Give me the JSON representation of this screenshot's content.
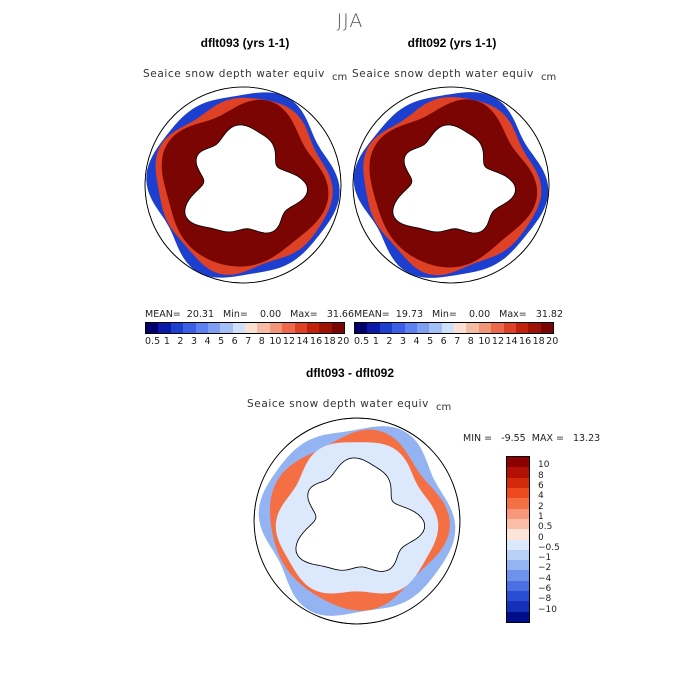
{
  "season": "JJA",
  "panels": [
    {
      "title": "dflt093 (yrs 1-1)",
      "variable": "Seaice snow depth water equiv",
      "unit": "cm",
      "stats": "MEAN=  20.31   Min=    0.00   Max=   31.66"
    },
    {
      "title": "dflt092 (yrs 1-1)",
      "variable": "Seaice snow depth water equiv",
      "unit": "cm",
      "stats": "MEAN=  19.73   Min=    0.00   Max=   31.82"
    }
  ],
  "diff_panel": {
    "title": "dflt093 - dflt092",
    "variable": "Seaice snow depth water equiv",
    "unit": "cm",
    "minmax": "MIN =   -9.55  MAX =   13.23"
  },
  "colorbar_abs": {
    "ticks": [
      "0.5",
      "1",
      "2",
      "3",
      "4",
      "5",
      "6",
      "7",
      "8",
      "10",
      "12",
      "14",
      "16",
      "18",
      "20"
    ],
    "colors": [
      "#00006e",
      "#0a1aa8",
      "#1d3fd0",
      "#3a5fe6",
      "#5b80ef",
      "#7d9ef3",
      "#a4bff6",
      "#cfe0fa",
      "#fbe0d4",
      "#f6bba3",
      "#f29477",
      "#ea6a4b",
      "#de4125",
      "#c0220e",
      "#9c1204",
      "#7a0502"
    ]
  },
  "colorbar_diff": {
    "ticks": [
      "10",
      "8",
      "6",
      "4",
      "2",
      "1",
      "0.5",
      "0",
      "−0.5",
      "−1",
      "−2",
      "−4",
      "−6",
      "−8",
      "−10"
    ],
    "colors": [
      "#8b0000",
      "#b30f05",
      "#d42a0c",
      "#ec4a1e",
      "#f56f45",
      "#f9977a",
      "#fbbfa7",
      "#fde4d8",
      "#dce8fb",
      "#b9d0f7",
      "#93b3f2",
      "#6d92ec",
      "#4a70e4",
      "#2a4dd6",
      "#1430bb",
      "#000d8a"
    ]
  }
}
